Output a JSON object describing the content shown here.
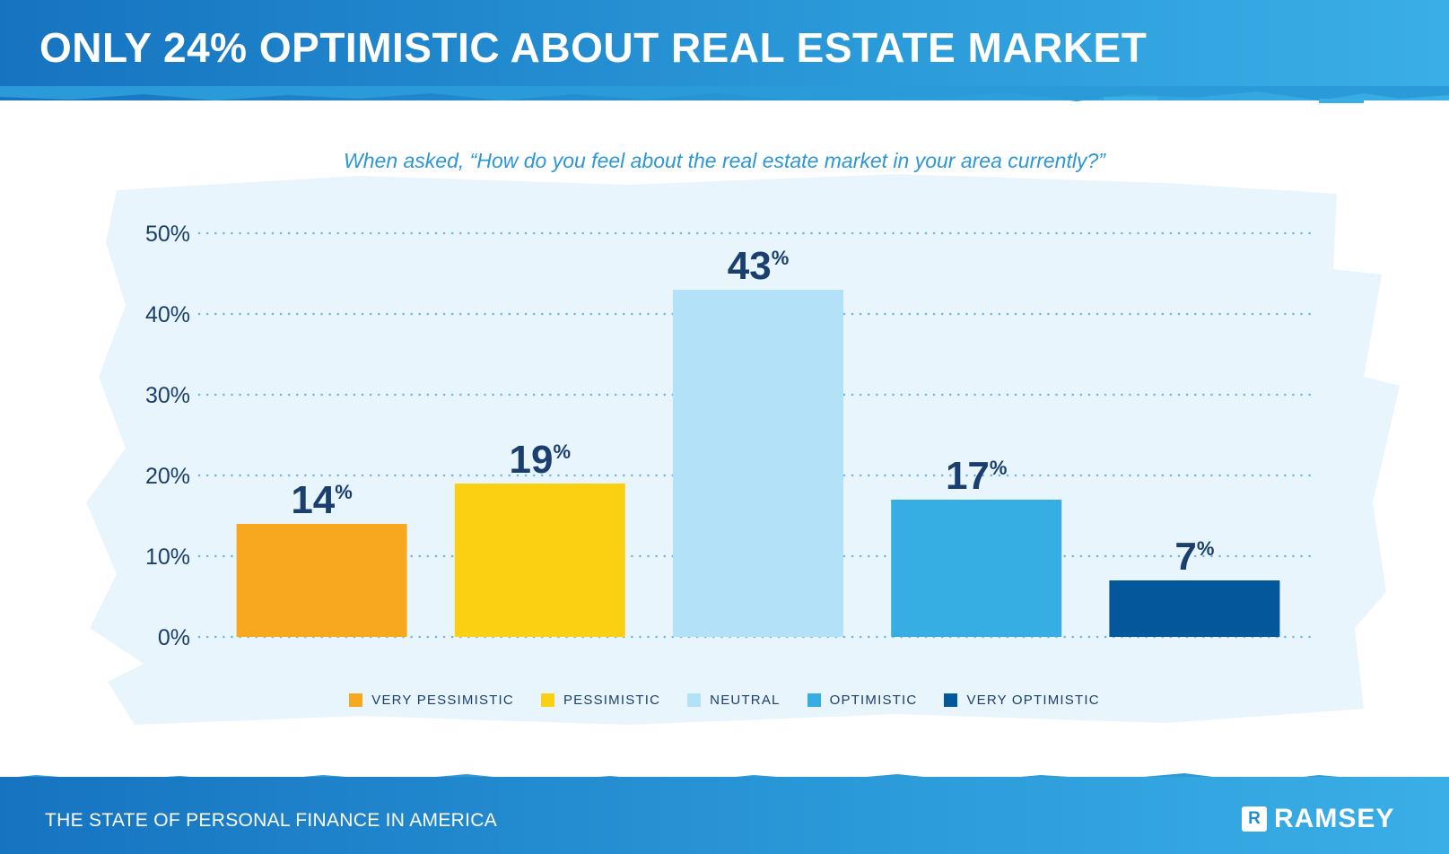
{
  "header": {
    "title": "ONLY 24% OPTIMISTIC ABOUT REAL ESTATE MARKET"
  },
  "footer": {
    "text": "THE STATE OF PERSONAL FINANCE IN AMERICA",
    "logo_mark": "R",
    "logo_text": "RAMSEY"
  },
  "colors": {
    "header_blue": "#1f8ad0",
    "text_navy": "#1a3f6f",
    "subtitle_blue": "#2b97d6",
    "paint_bg": "#e8f5fc",
    "grid_dots": "#6fb6e3"
  },
  "chart_data": {
    "type": "bar",
    "subtitle": "When asked, “How do you feel about the real estate market in your area currently?”",
    "categories": [
      "VERY PESSIMISTIC",
      "PESSIMISTIC",
      "NEUTRAL",
      "OPTIMISTIC",
      "VERY OPTIMISTIC"
    ],
    "values": [
      14,
      19,
      43,
      17,
      7
    ],
    "value_labels": [
      "14",
      "19",
      "43",
      "17",
      "7"
    ],
    "value_suffix": "%",
    "colors": [
      "#f8a81e",
      "#fbd013",
      "#b3e2f8",
      "#36ade3",
      "#03579a"
    ],
    "ylim": [
      0,
      50
    ],
    "yticks": [
      0,
      10,
      20,
      30,
      40,
      50
    ],
    "ytick_labels": [
      "0%",
      "10%",
      "20%",
      "30%",
      "40%",
      "50%"
    ],
    "grid": true,
    "grid_style": "dotted",
    "legend_position": "bottom"
  }
}
